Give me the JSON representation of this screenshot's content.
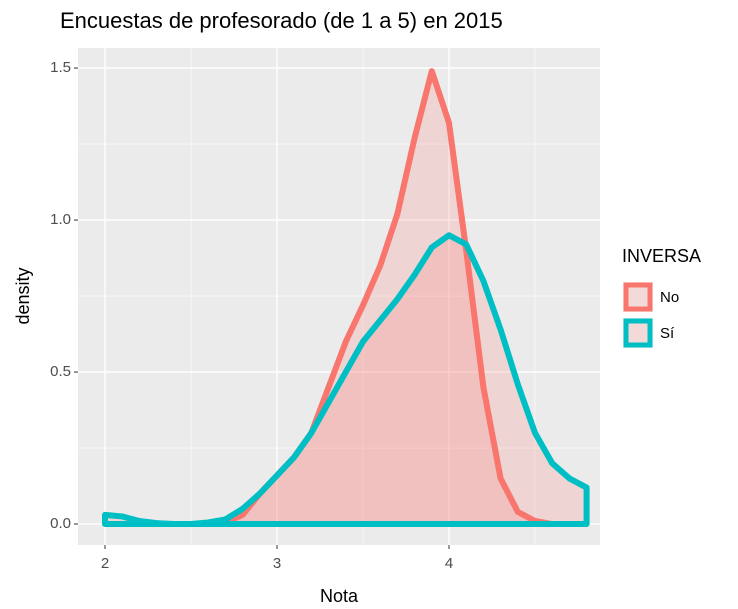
{
  "chart_data": {
    "type": "density",
    "title": "Encuestas de profesorado (de 1 a 5) en 2015",
    "xlabel": "Nota",
    "ylabel": "density",
    "legend_title": "INVERSA",
    "legend": "right",
    "grid": true,
    "fill_color": "#F8766D",
    "fill_opacity": 0.2,
    "x": [
      2.0,
      2.1,
      2.2,
      2.3,
      2.4,
      2.5,
      2.6,
      2.7,
      2.8,
      2.9,
      3.0,
      3.1,
      3.2,
      3.3,
      3.4,
      3.5,
      3.6,
      3.7,
      3.8,
      3.9,
      4.0,
      4.1,
      4.2,
      4.3,
      4.4,
      4.5,
      4.6,
      4.7,
      4.8
    ],
    "series": [
      {
        "name": "No",
        "color": "#F8766D",
        "values": [
          null,
          null,
          null,
          null,
          null,
          null,
          0.0,
          0.005,
          0.03,
          0.1,
          0.16,
          0.22,
          0.3,
          0.45,
          0.6,
          0.72,
          0.85,
          1.02,
          1.27,
          1.49,
          1.32,
          0.9,
          0.45,
          0.15,
          0.04,
          0.01,
          0.0,
          null,
          null
        ]
      },
      {
        "name": "Sí",
        "color": "#00BFC4",
        "values": [
          0.03,
          0.025,
          0.01,
          0.003,
          0.0,
          0.0,
          0.005,
          0.015,
          0.05,
          0.1,
          0.16,
          0.22,
          0.3,
          0.4,
          0.5,
          0.6,
          0.67,
          0.74,
          0.82,
          0.91,
          0.95,
          0.92,
          0.8,
          0.64,
          0.46,
          0.3,
          0.2,
          0.15,
          0.12
        ]
      }
    ],
    "xlim": [
      1.843,
      4.878
    ],
    "ylim": [
      -0.069,
      1.566
    ],
    "xticks": [
      2,
      3,
      4
    ],
    "yticks": [
      {
        "value": 0,
        "label": "0.0"
      },
      {
        "value": 0.5,
        "label": "0.5"
      },
      {
        "value": 1,
        "label": "1.0"
      },
      {
        "value": 1.5,
        "label": "1.5"
      }
    ],
    "minor_xticks": [
      2.5,
      3.5,
      4.5
    ],
    "minor_yticks": [
      0.25,
      0.75,
      1.25
    ]
  }
}
